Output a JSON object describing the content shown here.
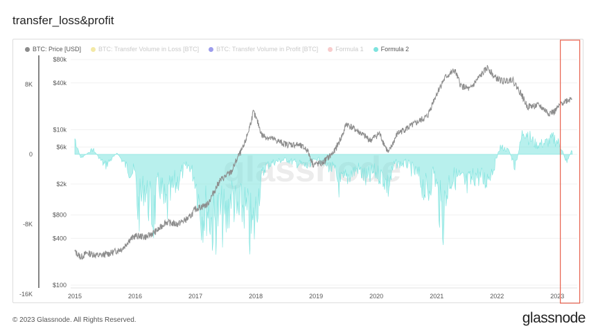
{
  "page": {
    "title": "transfer_loss&profit",
    "footer": "© 2023 Glassnode. All Rights Reserved.",
    "brand": "glassnode",
    "watermark": "glassnode"
  },
  "colors": {
    "price": "#8c8c8c",
    "loss": "#e8d44d",
    "profit": "#3b3bd9",
    "formula1": "#f29a9a",
    "formula2": "#7ee3de",
    "highlight": "#e8604c"
  },
  "legend": [
    {
      "label": "BTC: Price [USD]",
      "color": "#8c8c8c",
      "faded": false
    },
    {
      "label": "BTC: Transfer Volume in Loss [BTC]",
      "color": "#e8d44d",
      "faded": true
    },
    {
      "label": "BTC: Transfer Volume in Profit [BTC]",
      "color": "#3b3bd9",
      "faded": true
    },
    {
      "label": "Formula 1",
      "color": "#f29a9a",
      "faded": true
    },
    {
      "label": "Formula 2",
      "color": "#7ee3de",
      "faded": false
    }
  ],
  "chart_data": {
    "type": "line",
    "x_ticks": [
      "2015",
      "2016",
      "2017",
      "2018",
      "2019",
      "2020",
      "2021",
      "2022",
      "2023"
    ],
    "left_axis_ticks": [
      "8K",
      "0",
      "-8K",
      "-16K"
    ],
    "left_axis_range": [
      -16000,
      16000
    ],
    "right_axis_ticks": [
      "$80k",
      "$40k",
      "$10k",
      "$6k",
      "$2k",
      "$800",
      "$400",
      "$100"
    ],
    "right_axis_scale": "log",
    "right_axis_range": [
      100,
      80000
    ],
    "highlight_region": "2023",
    "series": [
      {
        "name": "BTC: Price [USD]",
        "axis": "right",
        "points": [
          [
            2015.0,
            270
          ],
          [
            2015.1,
            230
          ],
          [
            2015.2,
            260
          ],
          [
            2015.4,
            240
          ],
          [
            2015.6,
            260
          ],
          [
            2015.8,
            300
          ],
          [
            2015.9,
            380
          ],
          [
            2016.0,
            430
          ],
          [
            2016.2,
            420
          ],
          [
            2016.4,
            530
          ],
          [
            2016.5,
            650
          ],
          [
            2016.7,
            610
          ],
          [
            2016.9,
            740
          ],
          [
            2017.0,
            960
          ],
          [
            2017.2,
            1100
          ],
          [
            2017.4,
            2200
          ],
          [
            2017.6,
            2900
          ],
          [
            2017.7,
            4400
          ],
          [
            2017.8,
            6000
          ],
          [
            2017.9,
            11000
          ],
          [
            2017.96,
            17000
          ],
          [
            2018.05,
            11500
          ],
          [
            2018.1,
            8500
          ],
          [
            2018.3,
            7500
          ],
          [
            2018.5,
            6500
          ],
          [
            2018.7,
            6400
          ],
          [
            2018.85,
            5600
          ],
          [
            2018.95,
            3600
          ],
          [
            2019.1,
            3700
          ],
          [
            2019.3,
            5200
          ],
          [
            2019.45,
            9000
          ],
          [
            2019.5,
            12000
          ],
          [
            2019.7,
            9500
          ],
          [
            2019.9,
            7300
          ],
          [
            2020.05,
            9000
          ],
          [
            2020.2,
            5000
          ],
          [
            2020.35,
            9000
          ],
          [
            2020.6,
            11500
          ],
          [
            2020.85,
            15000
          ],
          [
            2020.95,
            24000
          ],
          [
            2021.05,
            35000
          ],
          [
            2021.15,
            48000
          ],
          [
            2021.3,
            58000
          ],
          [
            2021.4,
            37000
          ],
          [
            2021.55,
            33000
          ],
          [
            2021.7,
            47000
          ],
          [
            2021.85,
            64000
          ],
          [
            2021.95,
            48000
          ],
          [
            2022.1,
            42000
          ],
          [
            2022.25,
            45000
          ],
          [
            2022.4,
            29000
          ],
          [
            2022.5,
            20000
          ],
          [
            2022.7,
            20500
          ],
          [
            2022.85,
            16500
          ],
          [
            2022.95,
            17000
          ],
          [
            2023.1,
            23000
          ],
          [
            2023.2,
            24500
          ],
          [
            2023.25,
            27000
          ]
        ]
      },
      {
        "name": "Formula 2",
        "axis": "left",
        "points": [
          [
            2015.0,
            2500
          ],
          [
            2015.1,
            -600
          ],
          [
            2015.3,
            800
          ],
          [
            2015.5,
            -1800
          ],
          [
            2015.7,
            200
          ],
          [
            2015.9,
            -2500
          ],
          [
            2016.0,
            -3000
          ],
          [
            2016.05,
            -9000
          ],
          [
            2016.15,
            -5000
          ],
          [
            2016.3,
            -10000
          ],
          [
            2016.4,
            -4500
          ],
          [
            2016.5,
            -9000
          ],
          [
            2016.6,
            -6000
          ],
          [
            2016.8,
            -2500
          ],
          [
            2016.9,
            -1800
          ],
          [
            2017.0,
            -4000
          ],
          [
            2017.1,
            -9500
          ],
          [
            2017.2,
            -8500
          ],
          [
            2017.3,
            -11500
          ],
          [
            2017.4,
            -9000
          ],
          [
            2017.5,
            -11000
          ],
          [
            2017.6,
            -6000
          ],
          [
            2017.7,
            -10000
          ],
          [
            2017.8,
            -8000
          ],
          [
            2017.9,
            -11500
          ],
          [
            2017.95,
            -12500
          ],
          [
            2018.05,
            -6000
          ],
          [
            2018.15,
            -2000
          ],
          [
            2018.3,
            -1200
          ],
          [
            2018.5,
            -800
          ],
          [
            2018.7,
            -1500
          ],
          [
            2018.9,
            -2000
          ],
          [
            2019.0,
            -600
          ],
          [
            2019.1,
            -1200
          ],
          [
            2019.3,
            -2500
          ],
          [
            2019.4,
            -5200
          ],
          [
            2019.55,
            -3200
          ],
          [
            2019.7,
            -2200
          ],
          [
            2019.85,
            -4200
          ],
          [
            2019.95,
            -2800
          ],
          [
            2020.1,
            -3400
          ],
          [
            2020.2,
            -5200
          ],
          [
            2020.3,
            -1500
          ],
          [
            2020.5,
            -1500
          ],
          [
            2020.7,
            -3500
          ],
          [
            2020.85,
            -6500
          ],
          [
            2020.95,
            -2500
          ],
          [
            2021.05,
            -8000
          ],
          [
            2021.1,
            -10000
          ],
          [
            2021.2,
            -4200
          ],
          [
            2021.35,
            -3600
          ],
          [
            2021.5,
            -5200
          ],
          [
            2021.65,
            -3200
          ],
          [
            2021.8,
            -4200
          ],
          [
            2021.95,
            -2000
          ],
          [
            2022.05,
            1200
          ],
          [
            2022.2,
            600
          ],
          [
            2022.3,
            -2200
          ],
          [
            2022.45,
            4500
          ],
          [
            2022.55,
            2500
          ],
          [
            2022.65,
            1500
          ],
          [
            2022.8,
            1800
          ],
          [
            2022.95,
            2500
          ],
          [
            2023.05,
            1500
          ],
          [
            2023.15,
            -1200
          ],
          [
            2023.25,
            800
          ]
        ]
      }
    ]
  }
}
